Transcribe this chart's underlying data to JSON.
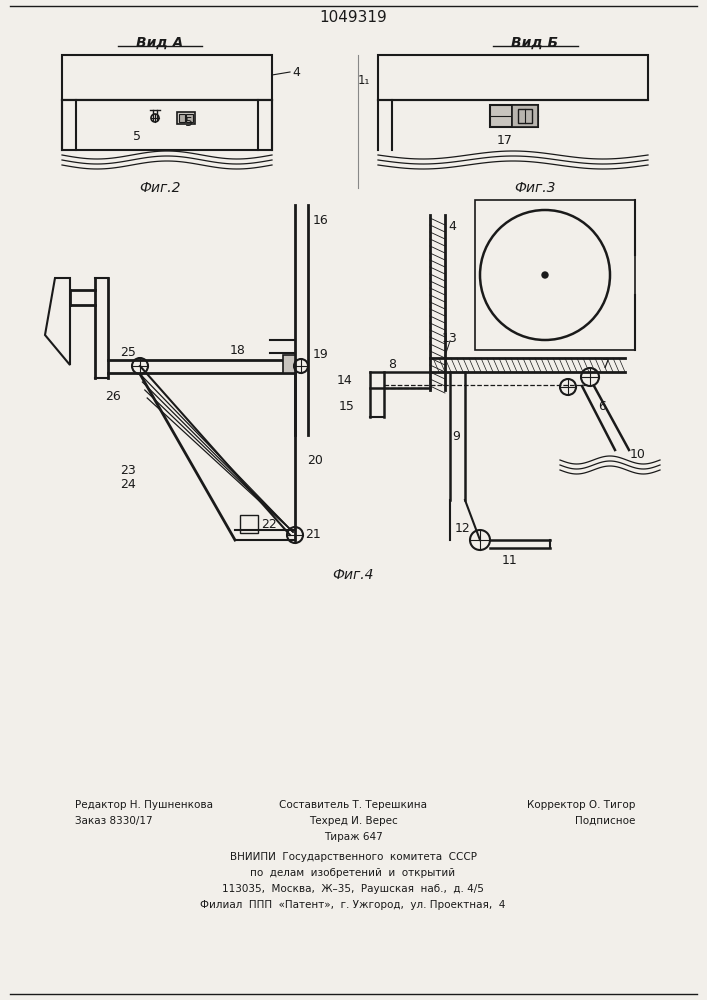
{
  "bg_color": "#f2efea",
  "line_color": "#1a1a1a",
  "title": "1049319",
  "fig_width": 7.07,
  "fig_height": 10.0,
  "vid_a_label": "Вид А",
  "vid_b_label": "Вид Б",
  "fig2_label": "Фиг.2",
  "fig3_label": "Фиг.3",
  "fig4_label": "Фиг.4"
}
